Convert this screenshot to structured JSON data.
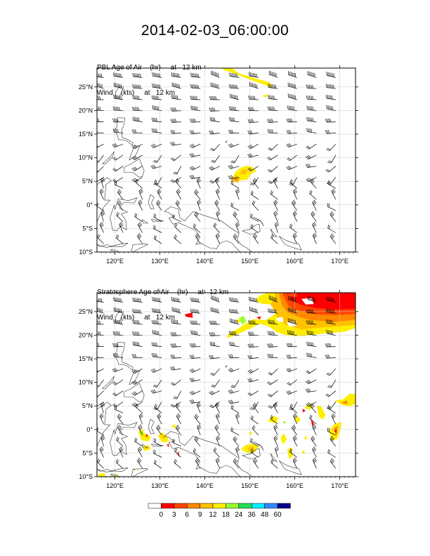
{
  "title": "2014-02-03_06:00:00",
  "panels": [
    {
      "id": "pbl",
      "title_line1": "PBL Age of Air    (hr)     at   12 km",
      "title_line2": "Wind    (kts)     at   12 km"
    },
    {
      "id": "strat",
      "title_line1": "Stratosphere Age of Air    (hr)     at   12 km",
      "title_line2": "Wind    (kts)     at   12 km"
    }
  ],
  "axes": {
    "lon_ticks": [
      "120°E",
      "130°E",
      "140°E",
      "150°E",
      "160°E",
      "170°E"
    ],
    "lat_ticks": [
      "25°N",
      "20°N",
      "15°N",
      "10°N",
      "5°N",
      "0°",
      "5°S",
      "10°S"
    ],
    "lon_range": [
      116,
      173.5
    ],
    "lat_range": [
      -10,
      29
    ]
  },
  "colorbar": {
    "labels": [
      "0",
      "3",
      "6",
      "9",
      "12",
      "18",
      "24",
      "36",
      "48",
      "60"
    ],
    "colors": [
      "#ffffff",
      "#ff0000",
      "#ff4400",
      "#ff8800",
      "#ffc000",
      "#ffee00",
      "#99ff33",
      "#22dd55",
      "#00eeff",
      "#3388ff",
      "#000088"
    ]
  },
  "chart_data": {
    "type": "map",
    "variables": [
      "PBL Age of Air (hr)",
      "Stratosphere Age of Air (hr)",
      "Wind (kts)"
    ],
    "level": "12 km"
  }
}
